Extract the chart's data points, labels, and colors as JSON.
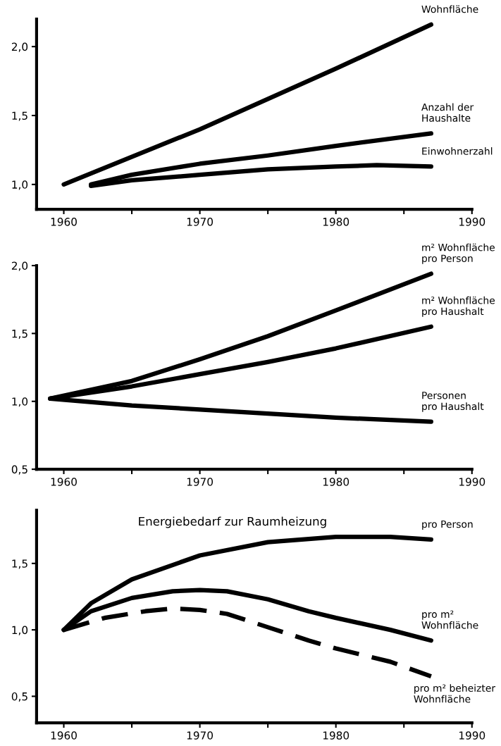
{
  "chart_data": [
    {
      "type": "line",
      "xlim": [
        1958,
        1990
      ],
      "ylim": [
        0.82,
        2.2
      ],
      "xticks": [
        1960,
        {
          "value": 1965,
          "label": null
        },
        1970,
        {
          "value": 1975,
          "label": null
        },
        1980,
        {
          "value": 1985,
          "label": null
        },
        1990
      ],
      "yticks": [
        {
          "value": 1.0,
          "label": "1,0"
        },
        {
          "value": 1.5,
          "label": "1,5"
        },
        {
          "value": 2.0,
          "label": "2,0"
        }
      ],
      "grid": false,
      "legend": false,
      "marker": "none",
      "series": [
        {
          "name": "Wohnfläche",
          "color": "#000000",
          "x": [
            1960,
            1970,
            1980,
            1987
          ],
          "values": [
            1.0,
            1.4,
            1.84,
            2.16
          ]
        },
        {
          "name": "Anzahl der\nHaushalte",
          "color": "#000000",
          "x": [
            1962,
            1965,
            1970,
            1975,
            1980,
            1987
          ],
          "values": [
            1.0,
            1.07,
            1.15,
            1.21,
            1.28,
            1.37
          ]
        },
        {
          "name": "Einwohnerzahl",
          "color": "#000000",
          "x": [
            1962,
            1965,
            1970,
            1975,
            1980,
            1983,
            1987
          ],
          "values": [
            0.99,
            1.03,
            1.07,
            1.11,
            1.13,
            1.14,
            1.13
          ]
        }
      ]
    },
    {
      "type": "line",
      "xlim": [
        1958,
        1990
      ],
      "ylim": [
        0.5,
        2.0
      ],
      "xticks": [
        1960,
        {
          "value": 1965,
          "label": null
        },
        1970,
        {
          "value": 1975,
          "label": null
        },
        1980,
        {
          "value": 1985,
          "label": null
        },
        1990
      ],
      "yticks": [
        {
          "value": 0.5,
          "label": "0,5"
        },
        {
          "value": 1.0,
          "label": "1,0"
        },
        {
          "value": 1.5,
          "label": "1,5"
        },
        {
          "value": 2.0,
          "label": "2,0"
        }
      ],
      "grid": false,
      "legend": false,
      "marker": "none",
      "series": [
        {
          "name": "m² Wohnfläche\npro Person",
          "color": "#000000",
          "x": [
            1959,
            1965,
            1970,
            1975,
            1980,
            1987
          ],
          "values": [
            1.02,
            1.15,
            1.31,
            1.48,
            1.67,
            1.94
          ]
        },
        {
          "name": "m² Wohnfläche\npro Haushalt",
          "color": "#000000",
          "x": [
            1959,
            1965,
            1970,
            1975,
            1980,
            1987
          ],
          "values": [
            1.02,
            1.11,
            1.2,
            1.29,
            1.39,
            1.55
          ]
        },
        {
          "name": "Personen\npro Haushalt",
          "color": "#000000",
          "x": [
            1959,
            1965,
            1970,
            1975,
            1980,
            1987
          ],
          "values": [
            1.02,
            0.97,
            0.94,
            0.91,
            0.88,
            0.85
          ]
        }
      ]
    },
    {
      "type": "line",
      "title": "Energiebedarf zur Raumheizung",
      "xlim": [
        1958,
        1990
      ],
      "ylim": [
        0.3,
        1.9
      ],
      "xticks": [
        1960,
        {
          "value": 1965,
          "label": null
        },
        1970,
        {
          "value": 1975,
          "label": null
        },
        1980,
        {
          "value": 1985,
          "label": null
        },
        1990
      ],
      "yticks": [
        {
          "value": 0.5,
          "label": "0,5"
        },
        {
          "value": 1.0,
          "label": "1,0"
        },
        {
          "value": 1.5,
          "label": "1,5"
        }
      ],
      "grid": false,
      "legend": false,
      "marker": "none",
      "series": [
        {
          "name": "pro Person",
          "color": "#000000",
          "x": [
            1960,
            1962,
            1965,
            1970,
            1975,
            1980,
            1984,
            1987
          ],
          "values": [
            1.0,
            1.2,
            1.38,
            1.56,
            1.66,
            1.7,
            1.7,
            1.68
          ]
        },
        {
          "name": "pro m²\nWohnfläche",
          "color": "#000000",
          "x": [
            1960,
            1962,
            1965,
            1968,
            1970,
            1972,
            1975,
            1978,
            1980,
            1984,
            1987
          ],
          "values": [
            1.0,
            1.14,
            1.24,
            1.29,
            1.3,
            1.29,
            1.23,
            1.14,
            1.09,
            1.0,
            0.92
          ]
        },
        {
          "name": "pro m² beheizter\nWohnfläche",
          "color": "#000000",
          "line_style": "dashed",
          "x": [
            1960,
            1963,
            1966,
            1968,
            1970,
            1972,
            1975,
            1978,
            1980,
            1984,
            1987
          ],
          "values": [
            1.0,
            1.09,
            1.14,
            1.16,
            1.15,
            1.12,
            1.02,
            0.92,
            0.86,
            0.76,
            0.65
          ]
        }
      ]
    }
  ]
}
